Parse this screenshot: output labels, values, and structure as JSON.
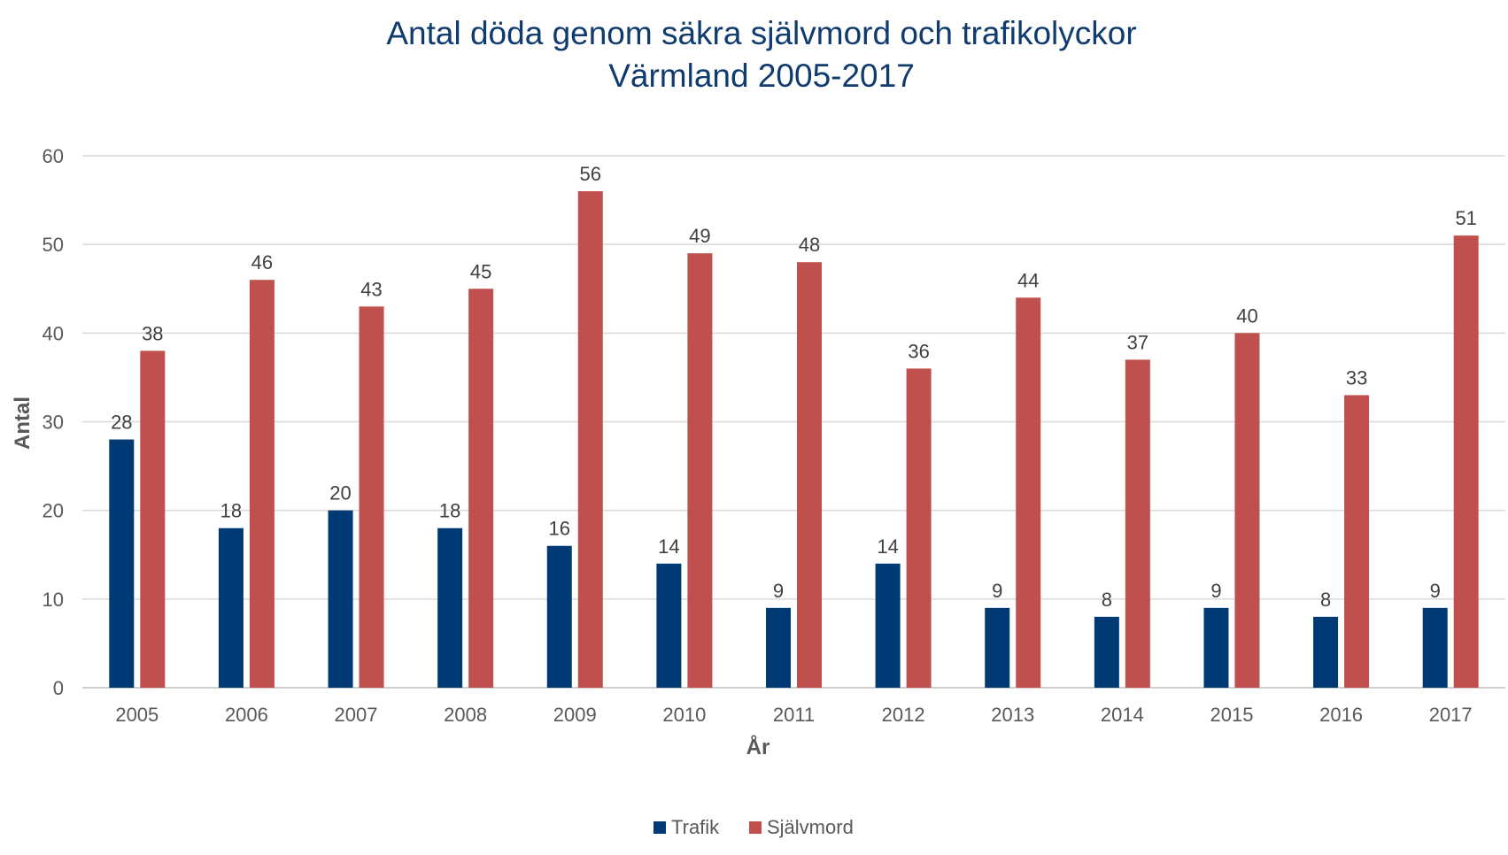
{
  "chart_data": {
    "type": "bar",
    "title_lines": [
      "Antal döda genom säkra självmord och trafikolyckor",
      "Värmland 2005-2017"
    ],
    "xlabel": "År",
    "ylabel": "Antal",
    "ylim": [
      0,
      60
    ],
    "yticks": [
      "0",
      "10",
      "20",
      "30",
      "40",
      "50",
      "60"
    ],
    "grid": true,
    "legend_position": "bottom",
    "categories": [
      "2005",
      "2006",
      "2007",
      "2008",
      "2009",
      "2010",
      "2011",
      "2012",
      "2013",
      "2014",
      "2015",
      "2016",
      "2017"
    ],
    "series": [
      {
        "name": "Trafik",
        "color": "#003a75",
        "values": [
          28,
          18,
          20,
          18,
          16,
          14,
          9,
          14,
          9,
          8,
          9,
          8,
          9
        ]
      },
      {
        "name": "Självmord",
        "color": "#c0504d",
        "values": [
          38,
          46,
          43,
          45,
          56,
          49,
          48,
          36,
          44,
          37,
          40,
          33,
          51
        ]
      }
    ]
  }
}
